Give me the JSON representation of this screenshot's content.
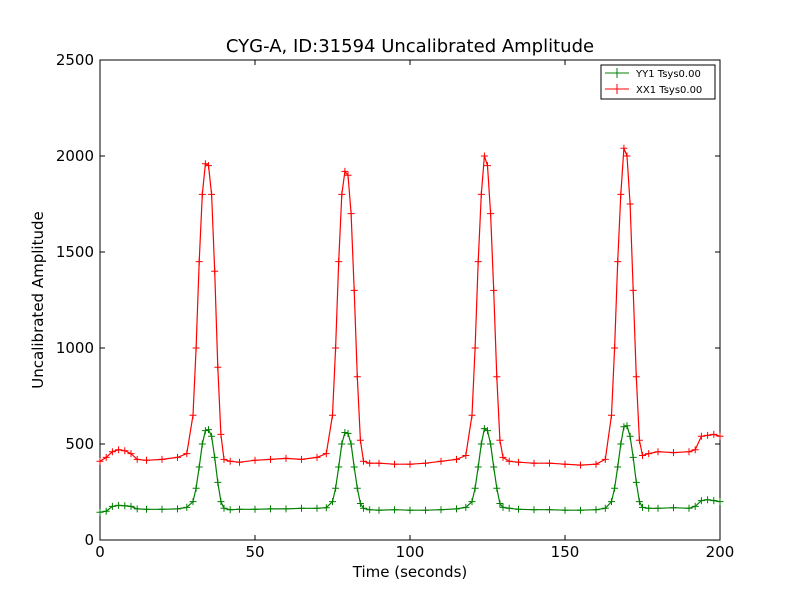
{
  "chart_data": {
    "type": "line",
    "title": "CYG-A, ID:31594 Uncalibrated Amplitude",
    "xlabel": "Time (seconds)",
    "ylabel": "Uncalibrated Amplitude",
    "xlim": [
      0,
      200
    ],
    "ylim": [
      0,
      2500
    ],
    "xticks": [
      "0",
      "50",
      "100",
      "150",
      "200"
    ],
    "yticks": [
      "0",
      "500",
      "1000",
      "1500",
      "2000",
      "2500"
    ],
    "grid": false,
    "legend_position": "top-right",
    "series": [
      {
        "name": "YY1 Tsys0.00",
        "color": "#008000",
        "marker": "+",
        "x": [
          0,
          2,
          4,
          6,
          8,
          10,
          12,
          15,
          20,
          25,
          28,
          30,
          31,
          32,
          33,
          34,
          35,
          36,
          37,
          38,
          39,
          40,
          42,
          45,
          50,
          55,
          60,
          65,
          70,
          73,
          75,
          76,
          77,
          78,
          79,
          80,
          81,
          82,
          83,
          84,
          85,
          87,
          90,
          95,
          100,
          105,
          110,
          115,
          118,
          120,
          121,
          122,
          123,
          124,
          125,
          126,
          127,
          128,
          129,
          130,
          132,
          135,
          140,
          145,
          150,
          155,
          160,
          163,
          165,
          166,
          167,
          168,
          169,
          170,
          171,
          172,
          173,
          174,
          175,
          177,
          180,
          185,
          190,
          192,
          194,
          196,
          198,
          200
        ],
        "y": [
          145,
          150,
          175,
          180,
          178,
          175,
          162,
          160,
          160,
          162,
          170,
          200,
          270,
          380,
          500,
          570,
          575,
          540,
          430,
          300,
          200,
          165,
          158,
          160,
          160,
          162,
          162,
          165,
          165,
          168,
          200,
          270,
          380,
          500,
          560,
          555,
          500,
          380,
          270,
          190,
          165,
          158,
          155,
          158,
          155,
          155,
          158,
          162,
          170,
          200,
          270,
          380,
          500,
          580,
          570,
          500,
          380,
          270,
          190,
          170,
          165,
          160,
          158,
          158,
          155,
          155,
          158,
          165,
          200,
          270,
          380,
          500,
          590,
          595,
          540,
          430,
          300,
          200,
          170,
          165,
          165,
          168,
          165,
          175,
          205,
          210,
          205,
          200
        ]
      },
      {
        "name": "XX1 Tsys0.00",
        "color": "#ff0000",
        "marker": "+",
        "x": [
          0,
          2,
          4,
          6,
          8,
          10,
          12,
          15,
          20,
          25,
          28,
          30,
          31,
          32,
          33,
          34,
          35,
          36,
          37,
          38,
          39,
          40,
          42,
          45,
          50,
          55,
          60,
          65,
          70,
          73,
          75,
          76,
          77,
          78,
          79,
          80,
          81,
          82,
          83,
          84,
          85,
          87,
          90,
          95,
          100,
          105,
          110,
          115,
          118,
          120,
          121,
          122,
          123,
          124,
          125,
          126,
          127,
          128,
          129,
          130,
          132,
          135,
          140,
          145,
          150,
          155,
          160,
          163,
          165,
          166,
          167,
          168,
          169,
          170,
          171,
          172,
          173,
          174,
          175,
          177,
          180,
          185,
          190,
          192,
          194,
          196,
          198,
          200
        ],
        "y": [
          410,
          430,
          460,
          470,
          465,
          450,
          420,
          415,
          420,
          430,
          450,
          650,
          1000,
          1450,
          1800,
          1960,
          1950,
          1800,
          1400,
          900,
          550,
          420,
          410,
          405,
          415,
          420,
          425,
          420,
          430,
          450,
          650,
          1000,
          1450,
          1800,
          1920,
          1900,
          1700,
          1300,
          850,
          520,
          410,
          400,
          400,
          395,
          395,
          400,
          410,
          420,
          440,
          650,
          1000,
          1450,
          1800,
          2000,
          1950,
          1700,
          1300,
          850,
          520,
          430,
          410,
          405,
          400,
          400,
          395,
          390,
          395,
          420,
          650,
          1000,
          1450,
          1800,
          2040,
          2000,
          1750,
          1300,
          850,
          520,
          440,
          450,
          460,
          455,
          460,
          470,
          540,
          545,
          550,
          540
        ]
      }
    ]
  }
}
